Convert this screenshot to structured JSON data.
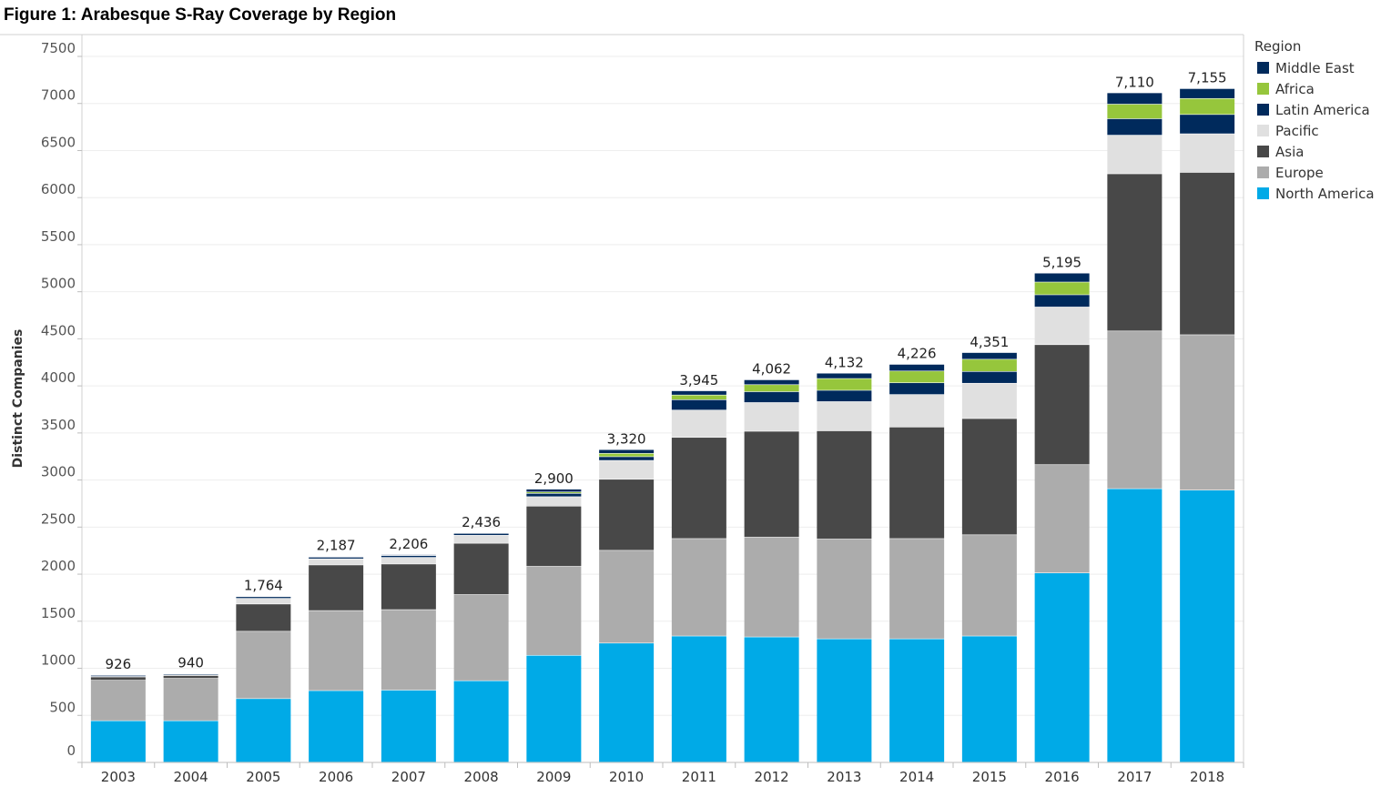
{
  "chart_data": {
    "type": "bar",
    "stacked": true,
    "title": "Figure 1: Arabesque S-Ray Coverage by Region",
    "xlabel": "",
    "ylabel": "Distinct Companies",
    "ylim": [
      0,
      7600
    ],
    "yticks": [
      0,
      500,
      1000,
      1500,
      2000,
      2500,
      3000,
      3500,
      4000,
      4500,
      5000,
      5500,
      6000,
      6500,
      7000,
      7500
    ],
    "legend_title": "Region",
    "legend_position": "right",
    "categories": [
      "2003",
      "2004",
      "2005",
      "2006",
      "2007",
      "2008",
      "2009",
      "2010",
      "2011",
      "2012",
      "2013",
      "2014",
      "2015",
      "2016",
      "2017",
      "2018"
    ],
    "totals": [
      926,
      940,
      1764,
      2187,
      2206,
      2436,
      2900,
      3320,
      3945,
      4062,
      4132,
      4226,
      4351,
      5195,
      7110,
      7155
    ],
    "total_labels": [
      "926",
      "940",
      "1,764",
      "2,187",
      "2,206",
      "2,436",
      "2,900",
      "3,320",
      "3,945",
      "4,062",
      "4,132",
      "4,226",
      "4,351",
      "5,195",
      "7,110",
      "7,155"
    ],
    "series": [
      {
        "name": "North America",
        "color": "#00aae7",
        "values": [
          440,
          440,
          675,
          760,
          765,
          865,
          1135,
          1265,
          1340,
          1330,
          1310,
          1310,
          1340,
          2010,
          2905,
          2890
        ]
      },
      {
        "name": "Europe",
        "color": "#acacac",
        "values": [
          430,
          450,
          715,
          850,
          855,
          915,
          945,
          985,
          1035,
          1060,
          1060,
          1065,
          1075,
          1150,
          1675,
          1650
        ]
      },
      {
        "name": "Asia",
        "color": "#484848",
        "values": [
          35,
          30,
          290,
          485,
          485,
          545,
          640,
          755,
          1075,
          1125,
          1150,
          1185,
          1235,
          1275,
          1670,
          1725
        ]
      },
      {
        "name": "Pacific",
        "color": "#e0e0e0",
        "values": [
          5,
          5,
          60,
          65,
          70,
          85,
          100,
          200,
          290,
          305,
          310,
          345,
          375,
          400,
          410,
          410
        ]
      },
      {
        "name": "Latin America",
        "color": "#002a5c",
        "values": [
          12,
          10,
          18,
          18,
          20,
          20,
          35,
          40,
          110,
          115,
          120,
          125,
          125,
          130,
          175,
          205
        ]
      },
      {
        "name": "Africa",
        "color": "#96c63c",
        "values": [
          2,
          3,
          3,
          4,
          4,
          3,
          15,
          35,
          50,
          75,
          125,
          125,
          130,
          135,
          155,
          170
        ]
      },
      {
        "name": "Middle East",
        "color": "#002a5c",
        "values": [
          2,
          2,
          3,
          5,
          7,
          3,
          30,
          40,
          45,
          52,
          57,
          71,
          71,
          95,
          120,
          105
        ]
      }
    ]
  }
}
